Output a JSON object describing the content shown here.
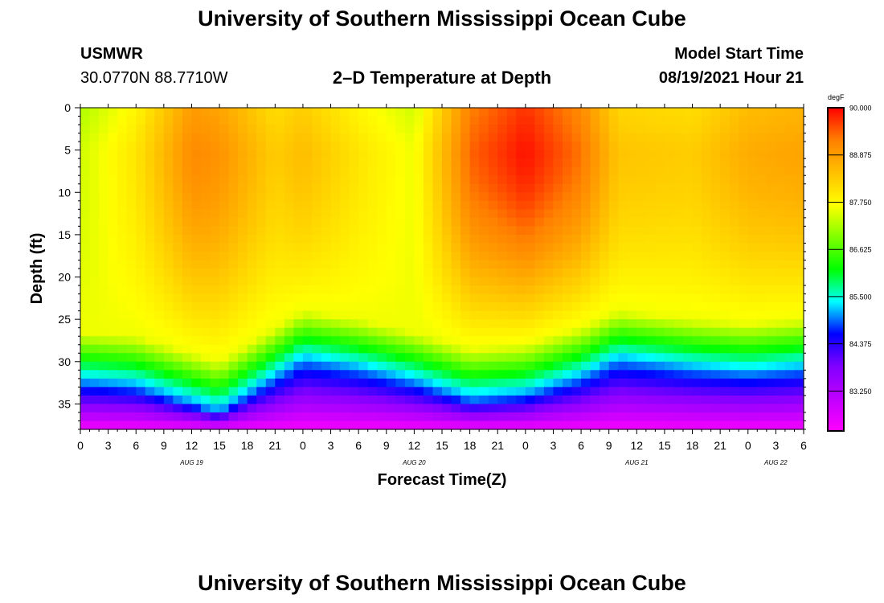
{
  "header": {
    "title": "University of Southern Mississippi Ocean Cube",
    "station": "USMWR",
    "coords": "30.0770N  88.7710W",
    "subtitle": "2–D Temperature at Depth",
    "model_label": "Model Start Time",
    "model_time": "08/19/2021 Hour 21"
  },
  "footer": {
    "title": "University of Southern Mississippi Ocean Cube"
  },
  "colors": {
    "palette": [
      "#ff00ff",
      "#c000ff",
      "#8000ff",
      "#0000ff",
      "#00ffff",
      "#00ff00",
      "#80ff00",
      "#ffff00",
      "#ffc000",
      "#ff8000",
      "#ff0000"
    ]
  },
  "chart_data": {
    "type": "heatmap",
    "title": "2–D Temperature at Depth",
    "xlabel": "Forecast Time(Z)",
    "ylabel": "Depth (ft)",
    "x_hours_range": [
      0,
      78
    ],
    "x_tick_labels": [
      "0",
      "3",
      "6",
      "9",
      "12",
      "15",
      "18",
      "21",
      "0",
      "3",
      "6",
      "9",
      "12",
      "15",
      "18",
      "21",
      "0",
      "3",
      "6",
      "9",
      "12",
      "15",
      "18",
      "21",
      "0",
      "3",
      "6"
    ],
    "date_labels": [
      {
        "label": "AUG 19",
        "hour": 12
      },
      {
        "label": "AUG 20",
        "hour": 36
      },
      {
        "label": "AUG 21",
        "hour": 60
      },
      {
        "label": "AUG 22",
        "hour": 75
      }
    ],
    "ylim": [
      0,
      38
    ],
    "y_ticks": [
      0,
      5,
      10,
      15,
      20,
      25,
      30,
      35
    ],
    "y_direction": "depth increases downward",
    "colorbar": {
      "unit": "degF",
      "min": 82.3,
      "max": 90.0,
      "labels": [
        "90.000",
        "88.875",
        "87.750",
        "86.625",
        "85.500",
        "84.375",
        "83.250"
      ]
    },
    "series": [
      {
        "hour": 0,
        "thermocline_ft": 29.5,
        "surface_degF": 87.4
      },
      {
        "hour": 6,
        "thermocline_ft": 30.0,
        "surface_degF": 88.0
      },
      {
        "hour": 12,
        "thermocline_ft": 32.0,
        "surface_degF": 89.1
      },
      {
        "hour": 15,
        "thermocline_ft": 33.0,
        "surface_degF": 89.0
      },
      {
        "hour": 21,
        "thermocline_ft": 29.0,
        "surface_degF": 88.3
      },
      {
        "hour": 24,
        "thermocline_ft": 27.0,
        "surface_degF": 88.5
      },
      {
        "hour": 30,
        "thermocline_ft": 28.0,
        "surface_degF": 88.0
      },
      {
        "hour": 36,
        "thermocline_ft": 29.5,
        "surface_degF": 87.6
      },
      {
        "hour": 42,
        "thermocline_ft": 31.5,
        "surface_degF": 89.4
      },
      {
        "hour": 48,
        "thermocline_ft": 31.0,
        "surface_degF": 89.9
      },
      {
        "hour": 54,
        "thermocline_ft": 29.0,
        "surface_degF": 89.3
      },
      {
        "hour": 58,
        "thermocline_ft": 27.0,
        "surface_degF": 88.4
      },
      {
        "hour": 66,
        "thermocline_ft": 28.0,
        "surface_degF": 88.3
      },
      {
        "hour": 72,
        "thermocline_ft": 28.5,
        "surface_degF": 88.7
      },
      {
        "hour": 78,
        "thermocline_ft": 28.0,
        "surface_degF": 88.8
      }
    ]
  }
}
